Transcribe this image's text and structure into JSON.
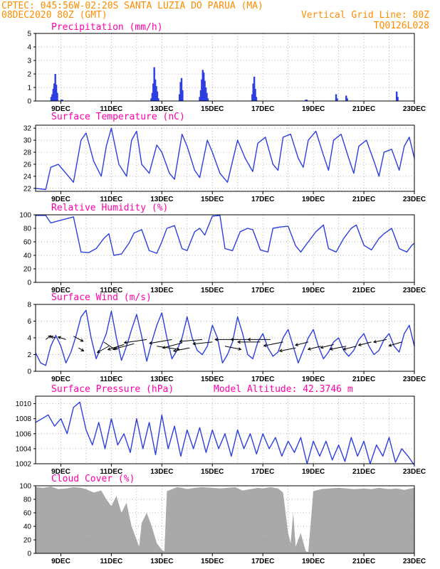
{
  "header": {
    "line1_left": "CPTEC:   045:56W-02:20S  SANTA LUZIA DO PARUA (MA)",
    "line2_left": "08DEC2020 80Z (GMT)",
    "line2_right": "Vertical Grid Line: 80Z",
    "line3_right": "TQ0126L028"
  },
  "colors": {
    "header": "#ff8c00",
    "title": "#ff00aa",
    "series": "#2d3fe0",
    "cloud": "#a9a9a9"
  },
  "chart_data": [
    {
      "id": "precip",
      "type": "bar",
      "title": "Precipitation (mm/h)",
      "xlim": [
        8,
        23
      ],
      "ylim": [
        0,
        5
      ],
      "yticks": [
        0,
        1,
        2,
        3,
        4,
        5
      ],
      "xticks": [
        9,
        11,
        13,
        15,
        17,
        19,
        21,
        23
      ],
      "xtick_labels": [
        "9DEC",
        "11DEC",
        "13DEC",
        "15DEC",
        "17DEC",
        "19DEC",
        "21DEC",
        "23DEC"
      ],
      "x": [
        8.62,
        8.66,
        8.7,
        8.74,
        8.78,
        8.82,
        8.86,
        9.02,
        9.06,
        12.58,
        12.62,
        12.66,
        12.7,
        12.74,
        12.78,
        12.82,
        12.86,
        13.7,
        13.74,
        13.78,
        13.82,
        14.5,
        14.54,
        14.58,
        14.62,
        14.66,
        14.7,
        14.74,
        14.78,
        14.82,
        16.58,
        16.62,
        16.66,
        16.7,
        16.74,
        18.7,
        18.74,
        19.9,
        19.94,
        20.3,
        20.34,
        22.3,
        22.34
      ],
      "values": [
        0.3,
        0.5,
        0.9,
        1.3,
        2.0,
        1.2,
        0.6,
        0.1,
        0.1,
        0.2,
        0.6,
        1.3,
        2.5,
        1.6,
        1.1,
        0.7,
        0.2,
        0.5,
        1.4,
        1.7,
        0.8,
        0.3,
        0.8,
        1.6,
        2.3,
        2.1,
        1.5,
        1.0,
        0.6,
        0.2,
        0.5,
        1.3,
        1.8,
        0.9,
        0.3,
        0.1,
        0.1,
        0.5,
        0.2,
        0.4,
        0.2,
        0.7,
        0.3
      ]
    },
    {
      "id": "temp",
      "type": "line",
      "title": "Surface Temperature (nC)",
      "xlim": [
        8,
        23
      ],
      "ylim": [
        21.5,
        32.5
      ],
      "yticks": [
        22,
        24,
        26,
        28,
        30,
        32
      ],
      "xticks": [
        9,
        11,
        13,
        15,
        17,
        19,
        21,
        23
      ],
      "xtick_labels": [
        "9DEC",
        "11DEC",
        "13DEC",
        "15DEC",
        "17DEC",
        "19DEC",
        "21DEC",
        "23DEC"
      ],
      "x": [
        8.0,
        8.4,
        8.6,
        8.9,
        9.2,
        9.5,
        9.8,
        10.0,
        10.3,
        10.6,
        10.8,
        11.0,
        11.3,
        11.6,
        11.8,
        12.0,
        12.2,
        12.5,
        12.8,
        13.0,
        13.3,
        13.5,
        13.8,
        14.0,
        14.3,
        14.5,
        14.8,
        15.0,
        15.3,
        15.6,
        15.8,
        16.0,
        16.3,
        16.6,
        16.8,
        17.1,
        17.4,
        17.6,
        17.8,
        18.1,
        18.4,
        18.6,
        18.8,
        19.1,
        19.4,
        19.6,
        19.8,
        20.1,
        20.4,
        20.6,
        20.8,
        21.1,
        21.4,
        21.6,
        21.8,
        22.1,
        22.4,
        22.6,
        22.8,
        23.0
      ],
      "values": [
        22.0,
        21.8,
        25.5,
        26.0,
        24.5,
        23.0,
        30.0,
        31.2,
        26.5,
        24.0,
        29.0,
        32.0,
        26.0,
        24.0,
        30.0,
        31.5,
        26.0,
        24.5,
        29.2,
        28.0,
        24.5,
        23.5,
        31.0,
        29.0,
        25.0,
        23.8,
        30.0,
        28.0,
        24.5,
        23.0,
        26.5,
        30.0,
        27.0,
        24.8,
        29.5,
        30.5,
        26.0,
        25.0,
        30.5,
        31.0,
        27.0,
        25.5,
        30.0,
        31.5,
        27.5,
        25.0,
        30.0,
        31.0,
        27.0,
        24.5,
        29.0,
        30.0,
        26.5,
        24.0,
        28.0,
        28.5,
        25.0,
        29.0,
        30.5,
        27.0
      ]
    },
    {
      "id": "rh",
      "type": "line",
      "title": "Relative Humidity (%)",
      "xlim": [
        8,
        23
      ],
      "ylim": [
        0,
        100
      ],
      "yticks": [
        0,
        20,
        40,
        60,
        80,
        100
      ],
      "xticks": [
        9,
        11,
        13,
        15,
        17,
        19,
        21,
        23
      ],
      "xtick_labels": [
        "9DEC",
        "11DEC",
        "13DEC",
        "15DEC",
        "17DEC",
        "19DEC",
        "21DEC",
        "23DEC"
      ],
      "x": [
        8.0,
        8.4,
        8.6,
        9.0,
        9.3,
        9.5,
        9.8,
        10.1,
        10.4,
        10.7,
        10.9,
        11.1,
        11.4,
        11.7,
        11.9,
        12.2,
        12.5,
        12.8,
        13.0,
        13.2,
        13.5,
        13.8,
        14.0,
        14.3,
        14.5,
        14.7,
        15.0,
        15.3,
        15.5,
        15.8,
        16.1,
        16.4,
        16.6,
        16.9,
        17.2,
        17.4,
        17.7,
        18.0,
        18.3,
        18.5,
        18.8,
        19.1,
        19.4,
        19.6,
        19.9,
        20.2,
        20.5,
        20.7,
        21.0,
        21.3,
        21.6,
        21.8,
        22.1,
        22.4,
        22.7,
        22.9,
        23.0
      ],
      "values": [
        99,
        99,
        88,
        92,
        95,
        97,
        45,
        44,
        50,
        65,
        72,
        40,
        42,
        58,
        73,
        78,
        47,
        43,
        60,
        80,
        84,
        50,
        47,
        75,
        80,
        70,
        98,
        99,
        50,
        47,
        75,
        80,
        78,
        48,
        45,
        80,
        82,
        83,
        54,
        45,
        60,
        75,
        85,
        50,
        45,
        65,
        80,
        85,
        55,
        48,
        65,
        72,
        80,
        50,
        45,
        55,
        58
      ]
    },
    {
      "id": "wind",
      "type": "line",
      "title": "Surface Wind (m/s)",
      "xlim": [
        8,
        23
      ],
      "ylim": [
        0,
        8
      ],
      "yticks": [
        0,
        2,
        4,
        6,
        8
      ],
      "xticks": [
        9,
        11,
        13,
        15,
        17,
        19,
        21,
        23
      ],
      "xtick_labels": [
        "9DEC",
        "11DEC",
        "13DEC",
        "15DEC",
        "17DEC",
        "19DEC",
        "21DEC",
        "23DEC"
      ],
      "x": [
        8.0,
        8.2,
        8.4,
        8.6,
        8.8,
        9.0,
        9.2,
        9.4,
        9.6,
        9.8,
        10.0,
        10.2,
        10.4,
        10.6,
        10.8,
        11.0,
        11.2,
        11.4,
        11.6,
        11.8,
        12.0,
        12.2,
        12.4,
        12.6,
        12.8,
        13.0,
        13.2,
        13.4,
        13.6,
        13.8,
        14.0,
        14.2,
        14.4,
        14.6,
        14.8,
        15.0,
        15.2,
        15.4,
        15.6,
        15.8,
        16.0,
        16.2,
        16.4,
        16.6,
        16.8,
        17.0,
        17.2,
        17.4,
        17.6,
        17.8,
        18.0,
        18.2,
        18.4,
        18.6,
        18.8,
        19.0,
        19.2,
        19.4,
        19.6,
        19.8,
        20.0,
        20.2,
        20.4,
        20.6,
        20.8,
        21.0,
        21.2,
        21.4,
        21.6,
        21.8,
        22.0,
        22.2,
        22.4,
        22.6,
        22.8,
        23.0
      ],
      "values": [
        2.2,
        1.0,
        0.7,
        3.0,
        4.3,
        3.0,
        1.0,
        2.3,
        4.2,
        6.5,
        7.3,
        4.0,
        1.5,
        3.0,
        4.5,
        7.2,
        4.0,
        1.3,
        3.0,
        5.0,
        6.8,
        4.2,
        1.2,
        3.5,
        5.5,
        7.0,
        4.0,
        1.5,
        2.5,
        4.0,
        6.5,
        4.0,
        2.5,
        2.0,
        3.0,
        5.5,
        4.0,
        1.0,
        2.0,
        3.5,
        6.5,
        4.5,
        2.0,
        1.5,
        3.5,
        4.5,
        2.8,
        1.8,
        2.3,
        4.0,
        5.0,
        3.0,
        1.0,
        2.5,
        4.0,
        5.0,
        3.0,
        1.5,
        2.3,
        3.5,
        4.0,
        2.5,
        1.8,
        2.5,
        3.8,
        4.5,
        3.0,
        2.0,
        2.5,
        3.8,
        4.5,
        3.0,
        2.3,
        4.5,
        5.5,
        3.0
      ]
    },
    {
      "id": "pressure",
      "type": "line",
      "title": "Surface Pressure (hPa)",
      "annotation": "Model Altitude: 42.3746 m",
      "xlim": [
        8,
        23
      ],
      "ylim": [
        1002,
        1011
      ],
      "yticks": [
        1002,
        1004,
        1006,
        1008,
        1010
      ],
      "xticks": [
        9,
        11,
        13,
        15,
        17,
        19,
        21,
        23
      ],
      "xtick_labels": [
        "9DEC",
        "11DEC",
        "13DEC",
        "15DEC",
        "17DEC",
        "19DEC",
        "21DEC",
        "23DEC"
      ],
      "x": [
        8.0,
        8.25,
        8.5,
        8.75,
        9.0,
        9.25,
        9.5,
        9.75,
        10.0,
        10.25,
        10.5,
        10.75,
        11.0,
        11.25,
        11.5,
        11.75,
        12.0,
        12.25,
        12.5,
        12.75,
        13.0,
        13.25,
        13.5,
        13.75,
        14.0,
        14.25,
        14.5,
        14.75,
        15.0,
        15.25,
        15.5,
        15.75,
        16.0,
        16.25,
        16.5,
        16.75,
        17.0,
        17.25,
        17.5,
        17.75,
        18.0,
        18.25,
        18.5,
        18.75,
        19.0,
        19.25,
        19.5,
        19.75,
        20.0,
        20.25,
        20.5,
        20.75,
        21.0,
        21.25,
        21.5,
        21.75,
        22.0,
        22.25,
        22.5,
        22.75,
        23.0
      ],
      "values": [
        1007.5,
        1008.0,
        1008.5,
        1007.0,
        1008.0,
        1006.0,
        1009.5,
        1010.2,
        1006.5,
        1004.5,
        1007.5,
        1004.0,
        1008.0,
        1004.5,
        1006.0,
        1003.5,
        1008.0,
        1004.0,
        1007.5,
        1003.2,
        1008.5,
        1004.0,
        1007.0,
        1003.0,
        1006.5,
        1004.0,
        1006.8,
        1003.5,
        1006.5,
        1004.0,
        1006.0,
        1003.0,
        1006.5,
        1004.0,
        1006.0,
        1003.3,
        1006.0,
        1004.0,
        1005.5,
        1003.0,
        1005.0,
        1003.5,
        1005.5,
        1002.0,
        1005.0,
        1003.0,
        1005.0,
        1002.5,
        1004.5,
        1002.3,
        1005.5,
        1003.0,
        1005.0,
        1002.0,
        1004.5,
        1003.0,
        1005.5,
        1002.2,
        1004.0,
        1003.0,
        1001.8
      ]
    },
    {
      "id": "cloud",
      "type": "area",
      "title": "Cloud Cover (%)",
      "xlim": [
        8,
        23
      ],
      "ylim": [
        0,
        100
      ],
      "yticks": [
        0,
        20,
        40,
        60,
        80,
        100
      ],
      "xticks": [
        9,
        11,
        13,
        15,
        17,
        19,
        21,
        23
      ],
      "xtick_labels": [
        "9DEC",
        "11DEC",
        "13DEC",
        "15DEC",
        "17DEC",
        "19DEC",
        "21DEC",
        "23DEC"
      ],
      "x": [
        8.0,
        8.3,
        8.6,
        8.9,
        9.2,
        9.5,
        9.8,
        10.0,
        10.3,
        10.6,
        10.8,
        11.0,
        11.2,
        11.4,
        11.6,
        11.8,
        12.0,
        12.1,
        12.2,
        12.4,
        12.6,
        12.8,
        13.0,
        13.1,
        13.2,
        13.4,
        13.6,
        13.8,
        14.0,
        14.3,
        14.6,
        15.0,
        15.3,
        15.6,
        15.9,
        16.2,
        16.5,
        16.8,
        17.0,
        17.3,
        17.6,
        17.8,
        18.0,
        18.1,
        18.2,
        18.3,
        18.5,
        18.7,
        18.8,
        19.0,
        19.3,
        19.6,
        20.0,
        20.3,
        20.6,
        21.0,
        21.3,
        21.6,
        22.0,
        22.3,
        22.6,
        23.0
      ],
      "values": [
        98,
        97,
        99,
        95,
        96,
        98,
        97,
        95,
        90,
        93,
        80,
        70,
        85,
        60,
        75,
        40,
        20,
        10,
        45,
        60,
        40,
        15,
        5,
        3,
        92,
        95,
        98,
        97,
        95,
        97,
        98,
        97,
        96,
        97,
        98,
        93,
        95,
        97,
        96,
        98,
        96,
        90,
        30,
        15,
        60,
        10,
        30,
        3,
        2,
        92,
        95,
        96,
        97,
        96,
        95,
        96,
        95,
        97,
        95,
        96,
        94,
        97
      ]
    }
  ],
  "wind_arrows": {
    "x": [
      8.4,
      8.8,
      9.2,
      9.5,
      9.7,
      10.7,
      10.9,
      11.5,
      11.9,
      12.4,
      12.8,
      13.4,
      13.8,
      14.1,
      14.6,
      15.0,
      15.5,
      16.0,
      16.5,
      16.9,
      17.3,
      17.8,
      18.3,
      18.8,
      19.3,
      19.8,
      20.3,
      20.7,
      21.3,
      21.9,
      22.5
    ],
    "y": [
      3.8,
      4.0,
      3.8,
      4.2,
      2.8,
      3.5,
      3.0,
      3.2,
      3.3,
      3.8,
      3.0,
      3.8,
      3.4,
      2.8,
      3.8,
      3.5,
      3.0,
      3.8,
      3.8,
      3.5,
      3.8,
      3.5,
      2.8,
      3.5,
      3.0,
      3.2,
      3.0,
      3.0,
      3.5,
      3.8,
      3.5
    ],
    "u": [
      0.8,
      -0.8,
      -1.2,
      1.5,
      0.8,
      1.8,
      -1.8,
      -2.5,
      -3.0,
      -3.5,
      3.5,
      -3.5,
      -3.0,
      -2.5,
      -3.5,
      -3.0,
      2.5,
      -3.5,
      -3.0,
      -3.5,
      -3.5,
      -3.0,
      -2.5,
      -2.0,
      -2.0,
      -2.0,
      -2.5,
      -2.0,
      -2.0,
      -2.0,
      -2.0
    ],
    "v": [
      0.6,
      0.2,
      0.4,
      -0.8,
      -0.5,
      -1.2,
      -1.0,
      -0.8,
      -0.8,
      -0.5,
      -0.5,
      -0.6,
      -0.8,
      -0.5,
      -0.3,
      -0.3,
      -0.5,
      0.0,
      0.0,
      0.0,
      0.0,
      -0.6,
      -0.5,
      -0.5,
      -0.5,
      -0.5,
      -0.5,
      -0.5,
      -0.5,
      -0.4,
      -0.6
    ]
  }
}
